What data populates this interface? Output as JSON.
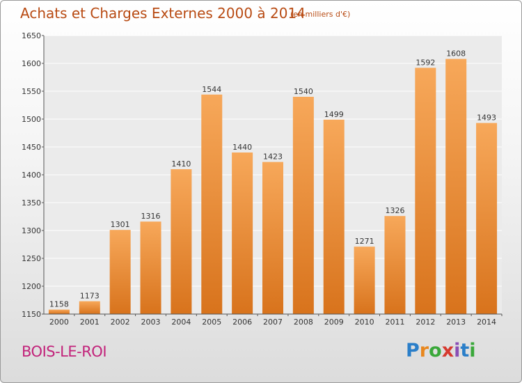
{
  "header": {
    "title": "Achats et Charges Externes 2000 à 2014",
    "subtitle": "(en milliers d'€)"
  },
  "footer": {
    "place": "BOIS-LE-ROI",
    "brand_letters": [
      "P",
      "r",
      "o",
      "x",
      "i",
      "t",
      "i"
    ],
    "brand_colors": [
      "#2b7fc9",
      "#e8871e",
      "#3aa83a",
      "#d63a2f",
      "#8a4fb5",
      "#2b7fc9",
      "#3aa83a"
    ]
  },
  "chart_data": {
    "type": "bar",
    "title": "Achats et Charges Externes 2000 à 2014",
    "subtitle": "(en milliers d'€)",
    "categories": [
      "2000",
      "2001",
      "2002",
      "2003",
      "2004",
      "2005",
      "2006",
      "2007",
      "2008",
      "2009",
      "2010",
      "2011",
      "2012",
      "2013",
      "2014"
    ],
    "values": [
      1158,
      1173,
      1301,
      1316,
      1410,
      1544,
      1440,
      1423,
      1540,
      1499,
      1271,
      1326,
      1592,
      1608,
      1493
    ],
    "ylim": [
      1150,
      1650
    ],
    "yticks": [
      1150,
      1200,
      1250,
      1300,
      1350,
      1400,
      1450,
      1500,
      1550,
      1600,
      1650
    ],
    "grid": true,
    "bar_color_top": "#f7a85a",
    "bar_color_bottom": "#d8731c"
  }
}
